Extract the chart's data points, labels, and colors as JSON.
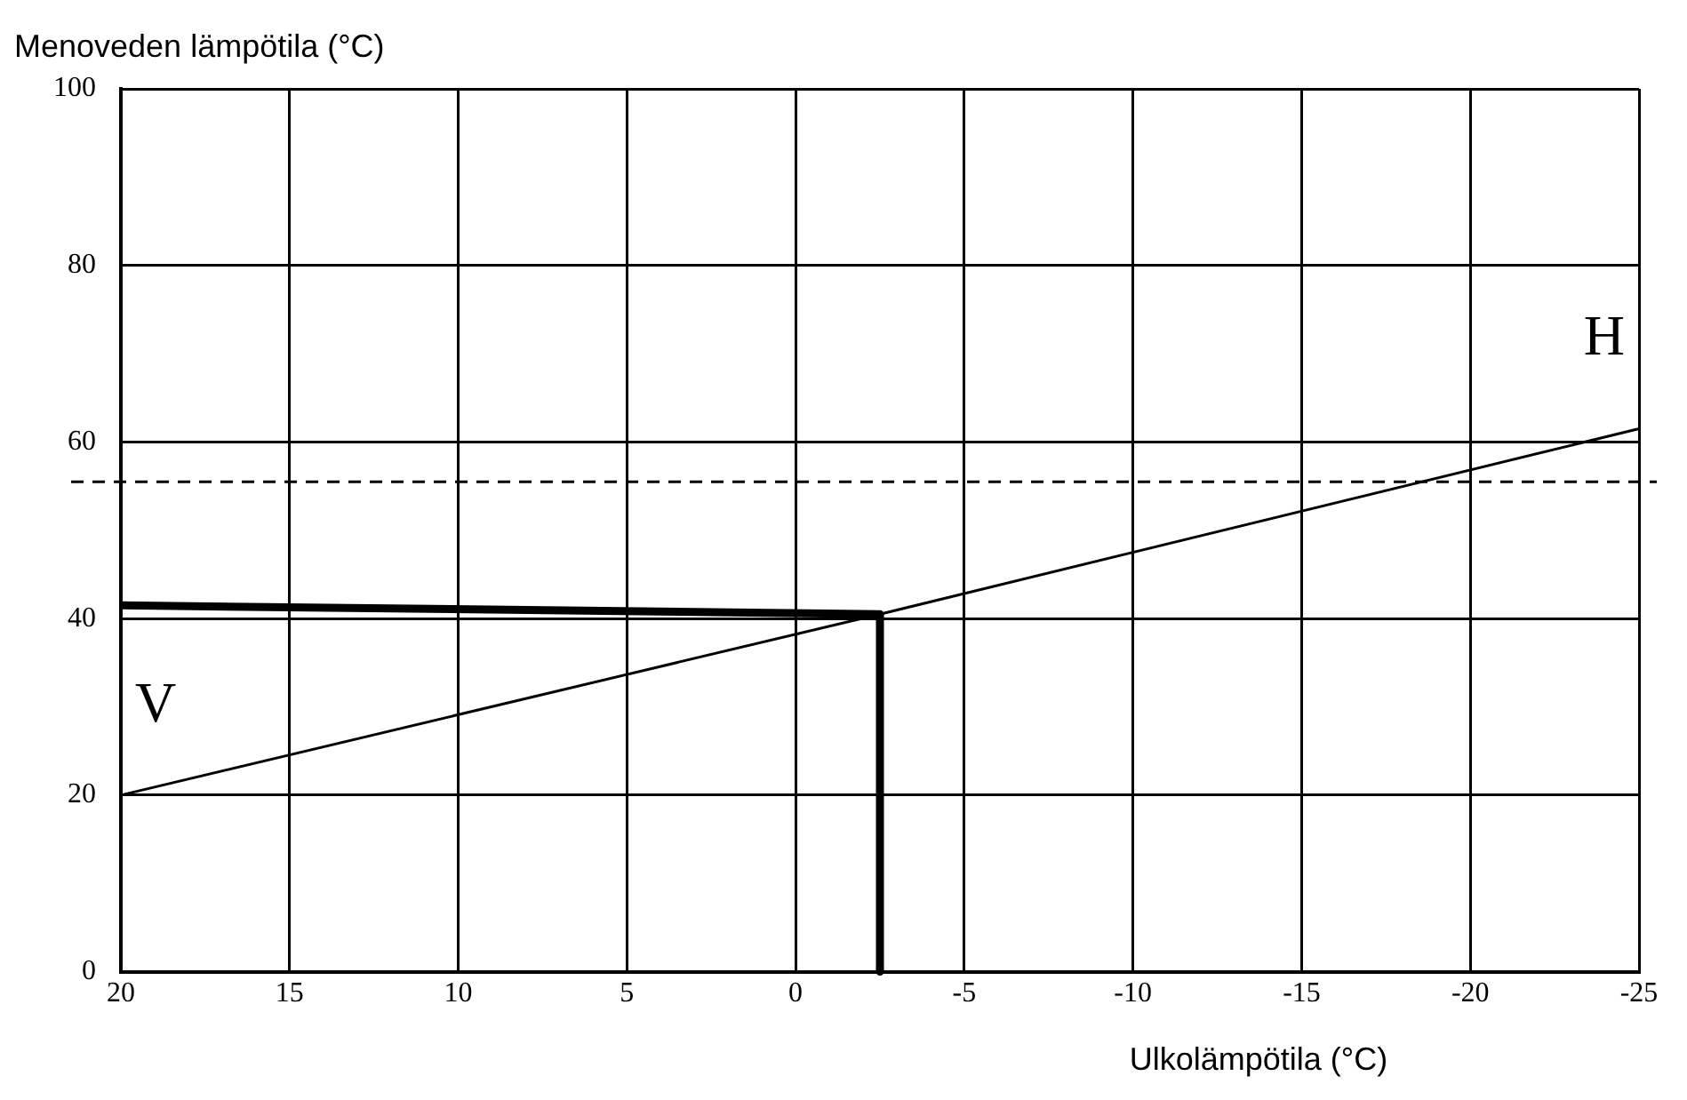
{
  "chart_data": {
    "type": "line",
    "ylabel": "Menoveden lämpötila (°C)",
    "xlabel": "Ulkolämpötila (°C)",
    "xlim": [
      20,
      -25
    ],
    "xticks": [
      20,
      15,
      10,
      5,
      0,
      -5,
      -10,
      -15,
      -20,
      -25
    ],
    "ylim": [
      0,
      100
    ],
    "yticks": [
      0,
      20,
      40,
      60,
      80,
      100
    ],
    "series": [
      {
        "color": "#000000",
        "x": [
          20,
          -2.5,
          -25
        ],
        "values": [
          20,
          40.5,
          61.5
        ]
      },
      {
        "color": "#000000",
        "x": [
          20,
          -2.5,
          -2.5
        ],
        "values": [
          41.5,
          40.5,
          0
        ]
      }
    ],
    "ref_lines": [
      {
        "axis": "y",
        "value": 55.5,
        "color": "#000000",
        "line_style": "dashed"
      }
    ],
    "annotations": [
      "H",
      "V"
    ],
    "grid": true,
    "legend": false,
    "marker": "none",
    "line_style": "solid"
  }
}
